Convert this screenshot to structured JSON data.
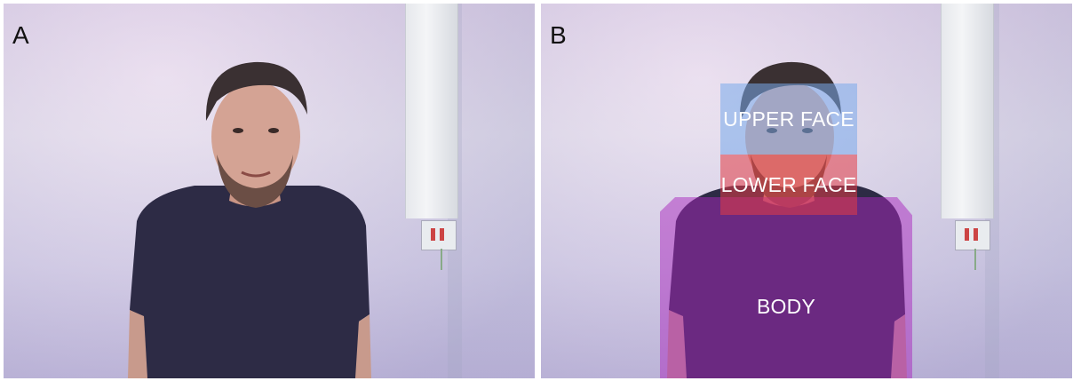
{
  "panels": [
    {
      "letter": "A"
    },
    {
      "letter": "B",
      "regions": {
        "upper_face": "UPPER FACE",
        "lower_face": "LOWER FACE",
        "body": "BODY"
      },
      "colors": {
        "upper_face": "#78aaeb",
        "lower_face": "#e13c46",
        "body": "#aa28be"
      }
    }
  ]
}
